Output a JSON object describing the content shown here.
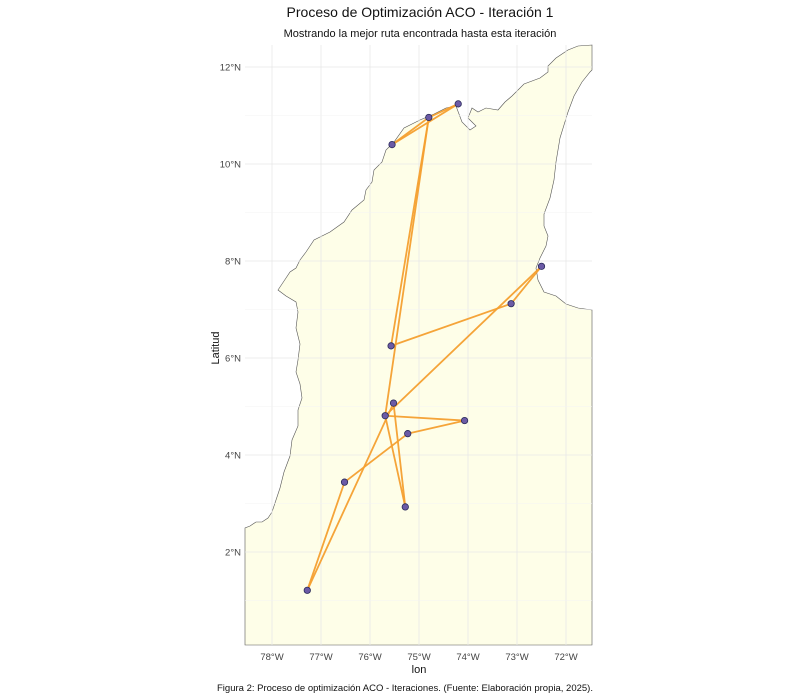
{
  "chart_data": {
    "type": "map-route",
    "title": "Proceso de Optimización ACO - Iteración 1",
    "subtitle": "Mostrando la mejor ruta encontrada hasta esta iteración",
    "xlabel": "lon",
    "ylabel": "Latitud",
    "xlim": [
      -78.5,
      -71.5
    ],
    "ylim": [
      0.0,
      12.5
    ],
    "x_ticks": [
      {
        "value": -78,
        "label": "78°W"
      },
      {
        "value": -77,
        "label": "77°W"
      },
      {
        "value": -76,
        "label": "76°W"
      },
      {
        "value": -75,
        "label": "75°W"
      },
      {
        "value": -74,
        "label": "74°W"
      },
      {
        "value": -73,
        "label": "73°W"
      },
      {
        "value": -72,
        "label": "72°W"
      }
    ],
    "y_ticks": [
      {
        "value": 2,
        "label": "2°N"
      },
      {
        "value": 4,
        "label": "4°N"
      },
      {
        "value": 6,
        "label": "6°N"
      },
      {
        "value": 8,
        "label": "8°N"
      },
      {
        "value": 10,
        "label": "10°N"
      },
      {
        "value": 12,
        "label": "12°N"
      }
    ],
    "grid": true,
    "colors": {
      "land": "#fefee8",
      "border": "#555555",
      "route": "#f5a030",
      "point_fill": "#6b5aa6",
      "point_edge": "#2a2a5a",
      "grid": "#e8e8e8"
    },
    "points": [
      {
        "lon": -75.55,
        "lat": 10.4
      },
      {
        "lon": -74.8,
        "lat": 10.96
      },
      {
        "lon": -74.2,
        "lat": 11.24
      },
      {
        "lon": -72.5,
        "lat": 7.89
      },
      {
        "lon": -73.12,
        "lat": 7.12
      },
      {
        "lon": -75.57,
        "lat": 6.25
      },
      {
        "lon": -75.52,
        "lat": 5.07
      },
      {
        "lon": -75.69,
        "lat": 4.81
      },
      {
        "lon": -74.07,
        "lat": 4.71
      },
      {
        "lon": -75.23,
        "lat": 4.44
      },
      {
        "lon": -76.52,
        "lat": 3.44
      },
      {
        "lon": -75.28,
        "lat": 2.93
      },
      {
        "lon": -77.28,
        "lat": 1.21
      }
    ],
    "route_lon": [
      -74.2,
      -75.55,
      -74.8,
      -75.57,
      -73.12,
      -72.5,
      -75.69,
      -74.07,
      -75.23,
      -76.52,
      -77.28,
      -75.52,
      -75.28,
      -75.69,
      -74.8,
      -74.2
    ],
    "route_lat": [
      11.24,
      10.4,
      10.96,
      6.25,
      7.12,
      7.89,
      4.81,
      4.71,
      4.44,
      3.44,
      1.21,
      5.07,
      2.93,
      4.81,
      10.96,
      11.24
    ]
  },
  "caption": "Figura 2: Proceso de optimización ACO - Iteraciones. (Fuente: Elaboración propia, 2025)."
}
